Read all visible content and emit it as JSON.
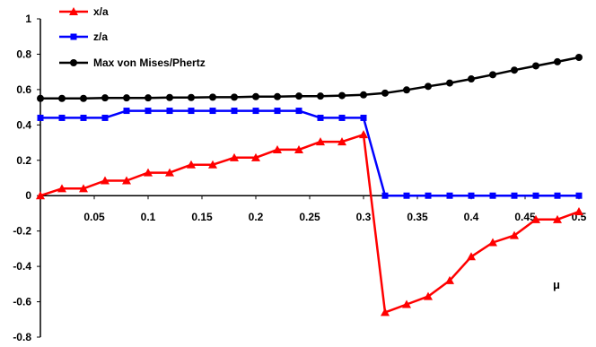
{
  "chart_data": {
    "type": "line",
    "title": "",
    "xlabel": "μ",
    "ylabel": "",
    "xlim": [
      0,
      0.5
    ],
    "ylim": [
      -0.8,
      1
    ],
    "grid": false,
    "legend": "top-left",
    "x_ticks": [
      "0.05",
      "0.1",
      "0.15",
      "0.2",
      "0.25",
      "0.3",
      "0.35",
      "0.4",
      "0.45",
      "0.5"
    ],
    "y_ticks": [
      "1",
      "0.8",
      "0.6",
      "0.4",
      "0.2",
      "0",
      "-0.2",
      "-0.4",
      "-0.6",
      "-0.8"
    ],
    "x": [
      0,
      0.02,
      0.04,
      0.06,
      0.08,
      0.1,
      0.12,
      0.14,
      0.16,
      0.18,
      0.2,
      0.22,
      0.24,
      0.26,
      0.28,
      0.3,
      0.32,
      0.34,
      0.36,
      0.38,
      0.4,
      0.42,
      0.44,
      0.46,
      0.48,
      0.5
    ],
    "series": [
      {
        "name": "x/a",
        "color": "#ff0000",
        "marker": "triangle",
        "values": [
          0,
          0.04,
          0.04,
          0.085,
          0.085,
          0.13,
          0.13,
          0.175,
          0.175,
          0.215,
          0.215,
          0.26,
          0.26,
          0.305,
          0.305,
          0.345,
          -0.66,
          -0.615,
          -0.57,
          -0.48,
          -0.345,
          -0.265,
          -0.225,
          -0.135,
          -0.135,
          -0.09
        ]
      },
      {
        "name": "z/a",
        "color": "#0000ff",
        "marker": "square",
        "values": [
          0.44,
          0.44,
          0.44,
          0.44,
          0.48,
          0.48,
          0.48,
          0.48,
          0.48,
          0.48,
          0.48,
          0.48,
          0.48,
          0.44,
          0.44,
          0.44,
          0,
          0,
          0,
          0,
          0,
          0,
          0,
          0,
          0,
          0
        ]
      },
      {
        "name": "Max von Mises/Phertz",
        "color": "#000000",
        "marker": "circle",
        "values": [
          0.55,
          0.55,
          0.55,
          0.553,
          0.553,
          0.553,
          0.555,
          0.555,
          0.557,
          0.557,
          0.56,
          0.56,
          0.563,
          0.563,
          0.566,
          0.57,
          0.58,
          0.598,
          0.618,
          0.637,
          0.66,
          0.684,
          0.71,
          0.734,
          0.757,
          0.782
        ]
      }
    ]
  }
}
